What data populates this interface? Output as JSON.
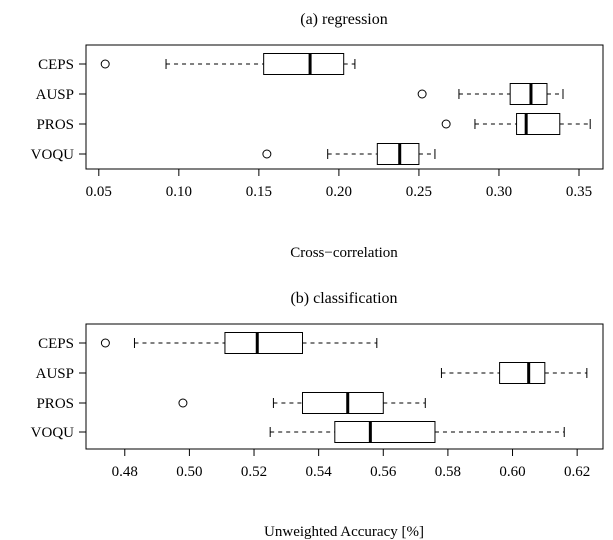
{
  "chart_data": [
    {
      "type": "boxplot",
      "title": "(a) regression",
      "xlabel": "Cross−correlation",
      "ylabel": "",
      "xlim": [
        0.042,
        0.365
      ],
      "ticks": [
        0.05,
        0.1,
        0.15,
        0.2,
        0.25,
        0.3,
        0.35
      ],
      "tick_labels": [
        "0.05",
        "0.10",
        "0.15",
        "0.20",
        "0.25",
        "0.30",
        "0.35"
      ],
      "categories": [
        "CEPS",
        "AUSP",
        "PROS",
        "VOQU"
      ],
      "boxes": [
        {
          "label": "CEPS",
          "whisker_low": 0.092,
          "q1": 0.153,
          "median": 0.182,
          "q3": 0.203,
          "whisker_high": 0.21,
          "outliers": [
            0.054
          ]
        },
        {
          "label": "AUSP",
          "whisker_low": 0.275,
          "q1": 0.307,
          "median": 0.32,
          "q3": 0.33,
          "whisker_high": 0.34,
          "outliers": [
            0.252
          ]
        },
        {
          "label": "PROS",
          "whisker_low": 0.285,
          "q1": 0.311,
          "median": 0.317,
          "q3": 0.338,
          "whisker_high": 0.357,
          "outliers": [
            0.267
          ]
        },
        {
          "label": "VOQU",
          "whisker_low": 0.193,
          "q1": 0.224,
          "median": 0.238,
          "q3": 0.25,
          "whisker_high": 0.26,
          "outliers": [
            0.155
          ]
        }
      ],
      "grid": false
    },
    {
      "type": "boxplot",
      "title": "(b) classification",
      "xlabel": "Unweighted Accuracy [%]",
      "ylabel": "",
      "xlim": [
        0.468,
        0.628
      ],
      "ticks": [
        0.48,
        0.5,
        0.52,
        0.54,
        0.56,
        0.58,
        0.6,
        0.62
      ],
      "tick_labels": [
        "0.48",
        "0.50",
        "0.52",
        "0.54",
        "0.56",
        "0.58",
        "0.60",
        "0.62"
      ],
      "categories": [
        "CEPS",
        "AUSP",
        "PROS",
        "VOQU"
      ],
      "boxes": [
        {
          "label": "CEPS",
          "whisker_low": 0.483,
          "q1": 0.511,
          "median": 0.521,
          "q3": 0.535,
          "whisker_high": 0.558,
          "outliers": [
            0.474
          ]
        },
        {
          "label": "AUSP",
          "whisker_low": 0.578,
          "q1": 0.596,
          "median": 0.605,
          "q3": 0.61,
          "whisker_high": 0.623,
          "outliers": []
        },
        {
          "label": "PROS",
          "whisker_low": 0.526,
          "q1": 0.535,
          "median": 0.549,
          "q3": 0.56,
          "whisker_high": 0.573,
          "outliers": [
            0.498
          ]
        },
        {
          "label": "VOQU",
          "whisker_low": 0.525,
          "q1": 0.545,
          "median": 0.556,
          "q3": 0.576,
          "whisker_high": 0.616,
          "outliers": []
        }
      ],
      "grid": false
    }
  ]
}
